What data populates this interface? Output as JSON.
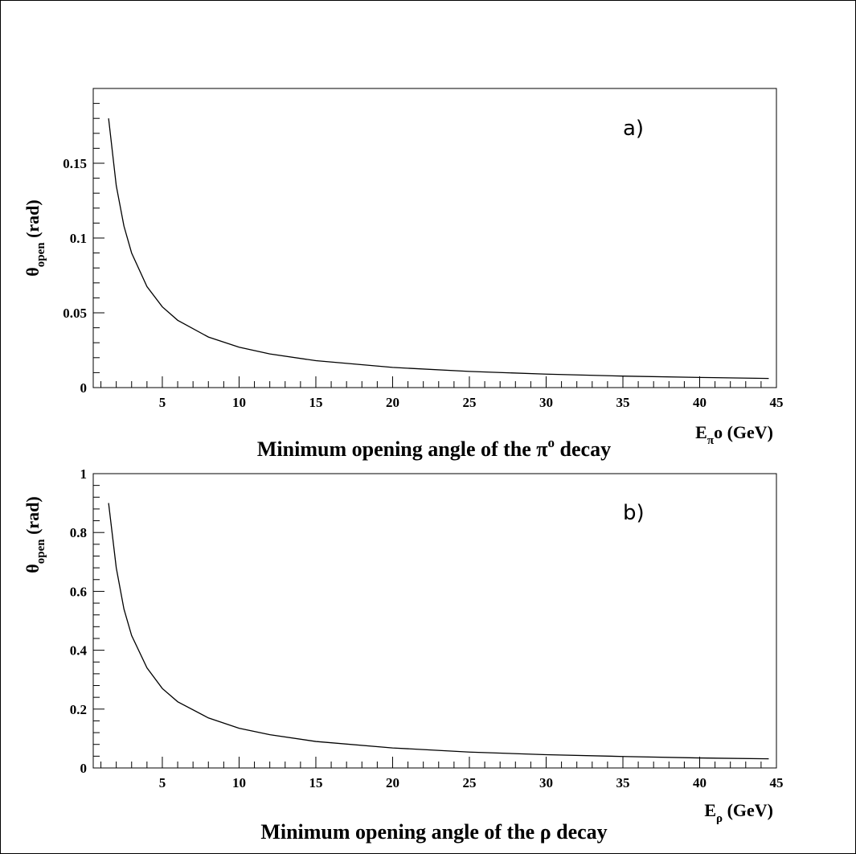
{
  "chart_data": [
    {
      "type": "line",
      "panel_label": "a)",
      "title": "Minimum opening angle of the π⁰ decay",
      "title_parts": {
        "main": "Minimum opening angle of the π",
        "sup": "o",
        "tail": " decay"
      },
      "xlabel": "E_πo (GeV)",
      "xlabel_parts": {
        "base": "E",
        "sub": "π",
        "rest": "o (GeV)"
      },
      "ylabel": "θ_open (rad)",
      "ylabel_parts": {
        "base": "θ",
        "sub": "open",
        "rest": " (rad)"
      },
      "xlim": [
        0.5,
        45
      ],
      "ylim": [
        0,
        0.2
      ],
      "xticks": [
        5,
        10,
        15,
        20,
        25,
        30,
        35,
        40,
        45
      ],
      "xtick_labels": [
        "5",
        "10",
        "15",
        "20",
        "25",
        "30",
        "35",
        "40",
        "45"
      ],
      "yticks": [
        0,
        0.05,
        0.1,
        0.15
      ],
      "ytick_labels": [
        "0",
        "0.05",
        "0.1",
        "0.15"
      ],
      "grid": false,
      "series": [
        {
          "x": [
            1.5,
            2,
            2.5,
            3,
            4,
            5,
            6,
            8,
            10,
            12,
            15,
            20,
            25,
            30,
            35,
            40,
            44.5
          ],
          "y": [
            0.18,
            0.135,
            0.108,
            0.09,
            0.0675,
            0.054,
            0.045,
            0.0338,
            0.027,
            0.0225,
            0.018,
            0.0135,
            0.0108,
            0.009,
            0.0077,
            0.0068,
            0.0061
          ]
        }
      ]
    },
    {
      "type": "line",
      "panel_label": "b)",
      "title": "Minimum opening angle of the ρ decay",
      "title_parts": {
        "main": "Minimum opening angle of the ρ",
        "sup": "",
        "tail": " decay"
      },
      "xlabel": "E_ρ (GeV)",
      "xlabel_parts": {
        "base": "E",
        "sub": "ρ",
        "rest": " (GeV)"
      },
      "ylabel": "θ_open (rad)",
      "ylabel_parts": {
        "base": "θ",
        "sub": "open",
        "rest": " (rad)"
      },
      "xlim": [
        0.5,
        45
      ],
      "ylim": [
        0,
        1
      ],
      "xticks": [
        5,
        10,
        15,
        20,
        25,
        30,
        35,
        40,
        45
      ],
      "xtick_labels": [
        "5",
        "10",
        "15",
        "20",
        "25",
        "30",
        "35",
        "40",
        "45"
      ],
      "yticks": [
        0,
        0.2,
        0.4,
        0.6,
        0.8,
        1
      ],
      "ytick_labels": [
        "0",
        "0.2",
        "0.4",
        "0.6",
        "0.8",
        "1"
      ],
      "grid": false,
      "series": [
        {
          "x": [
            1.5,
            2,
            2.5,
            3,
            4,
            5,
            6,
            8,
            10,
            12,
            15,
            20,
            25,
            30,
            35,
            40,
            44.5
          ],
          "y": [
            0.9,
            0.68,
            0.54,
            0.45,
            0.34,
            0.27,
            0.225,
            0.17,
            0.135,
            0.113,
            0.09,
            0.068,
            0.054,
            0.045,
            0.039,
            0.034,
            0.031
          ]
        }
      ]
    }
  ]
}
